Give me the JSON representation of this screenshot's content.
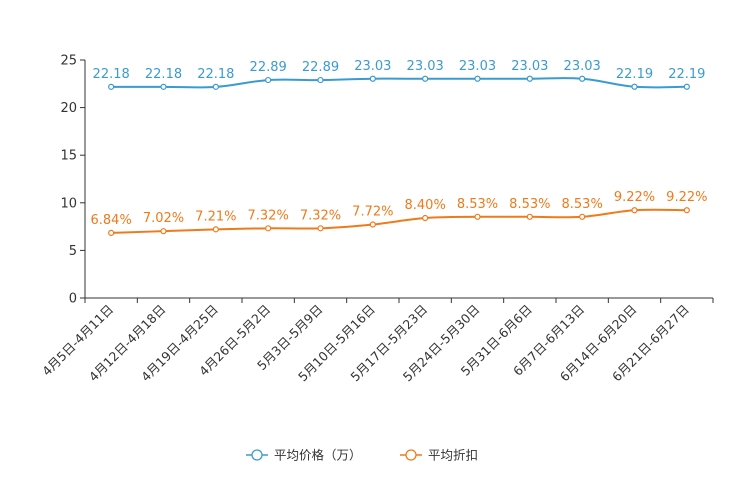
{
  "chart_data": {
    "type": "line",
    "title": "",
    "xlabel": "",
    "ylabel": "",
    "ylim": [
      0,
      25
    ],
    "yticks": [
      0,
      5,
      10,
      15,
      20,
      25
    ],
    "grid": false,
    "legend_position": "bottom-center",
    "categories": [
      "4月5日-4月11日",
      "4月12日-4月18日",
      "4月19日-4月25日",
      "4月26日-5月2日",
      "5月3日-5月9日",
      "5月10日-5月16日",
      "5月17日-5月23日",
      "5月24日-5月30日",
      "5月31日-6月6日",
      "6月7日-6月13日",
      "6月14日-6月20日",
      "6月21日-6月27日"
    ],
    "series": [
      {
        "name": "平均价格（万）",
        "color": "#3a9bd0",
        "values": [
          22.18,
          22.18,
          22.18,
          22.89,
          22.89,
          23.03,
          23.03,
          23.03,
          23.03,
          23.03,
          22.19,
          22.19
        ],
        "labels": [
          "22.18",
          "22.18",
          "22.18",
          "22.89",
          "22.89",
          "23.03",
          "23.03",
          "23.03",
          "23.03",
          "23.03",
          "22.19",
          "22.19"
        ]
      },
      {
        "name": "平均折扣",
        "color": "#f07a1a",
        "values": [
          6.84,
          7.02,
          7.21,
          7.32,
          7.32,
          7.72,
          8.4,
          8.53,
          8.53,
          8.53,
          9.22,
          9.22
        ],
        "labels": [
          "6.84%",
          "7.02%",
          "7.21%",
          "7.32%",
          "7.32%",
          "7.72%",
          "8.40%",
          "8.53%",
          "8.53%",
          "8.53%",
          "9.22%",
          "9.22%"
        ]
      }
    ]
  }
}
